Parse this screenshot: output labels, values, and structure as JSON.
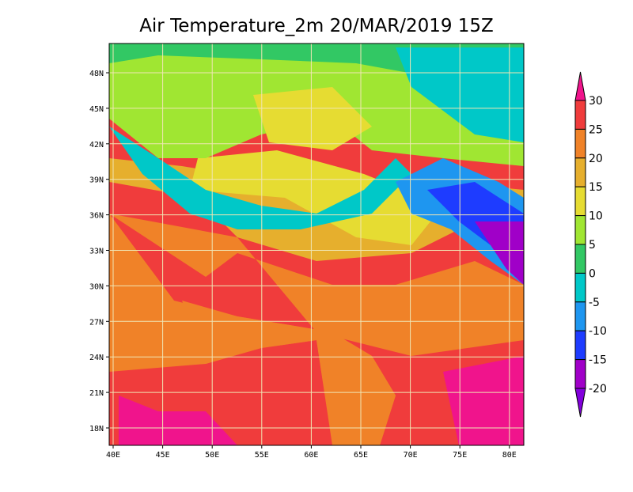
{
  "title": "Air Temperature_2m 20/MAR/2019 15Z",
  "map": {
    "lat_labels": [
      "48N",
      "45N",
      "42N",
      "39N",
      "36N",
      "33N",
      "30N",
      "27N",
      "24N",
      "21N",
      "18N"
    ],
    "lon_labels": [
      "40E",
      "45E",
      "50E",
      "55E",
      "60E",
      "65E",
      "70E",
      "75E",
      "80E"
    ]
  },
  "colorbar": {
    "labels": [
      "30",
      "25",
      "20",
      "15",
      "10",
      "5",
      "0",
      "-5",
      "-10",
      "-15",
      "-20"
    ],
    "colors": [
      "#f0148c",
      "#f03c3c",
      "#f08228",
      "#e6af2d",
      "#e6dc32",
      "#a0e632",
      "#32c864",
      "#00c8c8",
      "#1e96f0",
      "#1e3cff",
      "#a000c8",
      "#8200dc"
    ]
  }
}
